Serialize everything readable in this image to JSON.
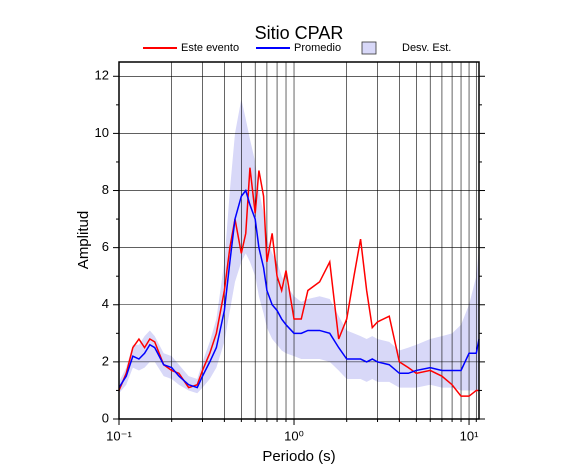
{
  "chart_data": {
    "type": "line",
    "title": "Sitio CPAR",
    "xlabel": "Periodo (s)",
    "ylabel": "Amplitud",
    "xscale": "log",
    "xlim": [
      0.1,
      11.4
    ],
    "ylim": [
      0,
      12.5
    ],
    "xticks": [
      {
        "value": 0.1,
        "label": "10⁻¹"
      },
      {
        "value": 1,
        "label": "10⁰"
      },
      {
        "value": 10,
        "label": "10¹"
      }
    ],
    "xminor_ticks": [
      0.2,
      0.3,
      0.4,
      0.5,
      0.6,
      0.7,
      0.8,
      0.9,
      2,
      3,
      4,
      5,
      6,
      7,
      8,
      9,
      11
    ],
    "yticks": [
      0,
      2,
      4,
      6,
      8,
      10,
      12
    ],
    "yminor_ticks": [
      1,
      3,
      5,
      7,
      9,
      11
    ],
    "grid": true,
    "legend": "top",
    "x": [
      0.1,
      0.11,
      0.12,
      0.13,
      0.14,
      0.15,
      0.16,
      0.18,
      0.2,
      0.22,
      0.25,
      0.28,
      0.3,
      0.33,
      0.36,
      0.4,
      0.43,
      0.46,
      0.5,
      0.53,
      0.56,
      0.6,
      0.63,
      0.67,
      0.7,
      0.75,
      0.8,
      0.85,
      0.9,
      1.0,
      1.1,
      1.2,
      1.4,
      1.6,
      1.8,
      2.0,
      2.2,
      2.4,
      2.6,
      2.8,
      3.0,
      3.5,
      4.0,
      4.5,
      5,
      6,
      7,
      8,
      9,
      10,
      11,
      11.4
    ],
    "series": [
      {
        "name": "Este evento",
        "color": "#ff0000",
        "values": [
          1.0,
          1.6,
          2.5,
          2.8,
          2.5,
          2.8,
          2.7,
          1.9,
          1.7,
          1.6,
          1.1,
          1.2,
          1.7,
          2.3,
          3.0,
          4.5,
          6.0,
          7.0,
          5.8,
          6.5,
          8.8,
          7.2,
          8.7,
          7.8,
          5.5,
          6.5,
          5.0,
          4.5,
          5.2,
          3.5,
          3.5,
          4.5,
          4.8,
          5.5,
          2.8,
          3.5,
          5.0,
          6.3,
          4.5,
          3.2,
          3.4,
          3.6,
          2.0,
          1.8,
          1.6,
          1.7,
          1.5,
          1.2,
          0.8,
          0.8,
          1.0,
          1.0
        ]
      },
      {
        "name": "Promedio",
        "color": "#0000ff",
        "values": [
          1.1,
          1.5,
          2.2,
          2.1,
          2.3,
          2.6,
          2.5,
          1.9,
          1.8,
          1.5,
          1.2,
          1.1,
          1.5,
          2.0,
          2.5,
          3.8,
          5.5,
          7.0,
          7.8,
          8.0,
          7.5,
          7.0,
          6.0,
          5.3,
          4.5,
          4.0,
          3.8,
          3.5,
          3.3,
          3.0,
          3.0,
          3.1,
          3.1,
          3.0,
          2.5,
          2.1,
          2.1,
          2.1,
          2.0,
          2.1,
          2.0,
          1.9,
          1.6,
          1.6,
          1.7,
          1.8,
          1.7,
          1.7,
          1.7,
          2.3,
          2.3,
          2.8
        ]
      }
    ],
    "band": {
      "name": "Desv. Est.",
      "color": "#d8d8f8",
      "upper": [
        1.3,
        1.8,
        2.6,
        2.6,
        2.9,
        3.1,
        2.9,
        2.3,
        2.2,
        1.9,
        1.5,
        1.4,
        2.0,
        2.7,
        3.5,
        5.5,
        8.0,
        10.0,
        11.2,
        10.5,
        9.8,
        9.0,
        8.0,
        7.2,
        6.3,
        5.8,
        5.5,
        5.0,
        4.7,
        4.3,
        4.1,
        4.2,
        4.3,
        4.2,
        3.6,
        3.1,
        3.0,
        2.9,
        2.8,
        2.9,
        2.8,
        2.7,
        2.4,
        2.5,
        2.6,
        2.8,
        2.9,
        3.0,
        3.3,
        4.0,
        5.0,
        6.0
      ],
      "lower": [
        0.9,
        1.2,
        1.8,
        1.7,
        1.8,
        2.0,
        2.0,
        1.5,
        1.4,
        1.2,
        1.0,
        0.9,
        1.1,
        1.4,
        1.8,
        2.7,
        3.8,
        4.8,
        5.5,
        5.8,
        5.5,
        5.0,
        4.3,
        3.7,
        3.2,
        2.8,
        2.6,
        2.4,
        2.3,
        2.2,
        2.1,
        2.1,
        2.1,
        2.0,
        1.7,
        1.4,
        1.4,
        1.4,
        1.3,
        1.4,
        1.3,
        1.3,
        1.1,
        1.1,
        1.1,
        1.2,
        1.1,
        1.1,
        1.0,
        1.0,
        1.0,
        1.0
      ]
    }
  }
}
